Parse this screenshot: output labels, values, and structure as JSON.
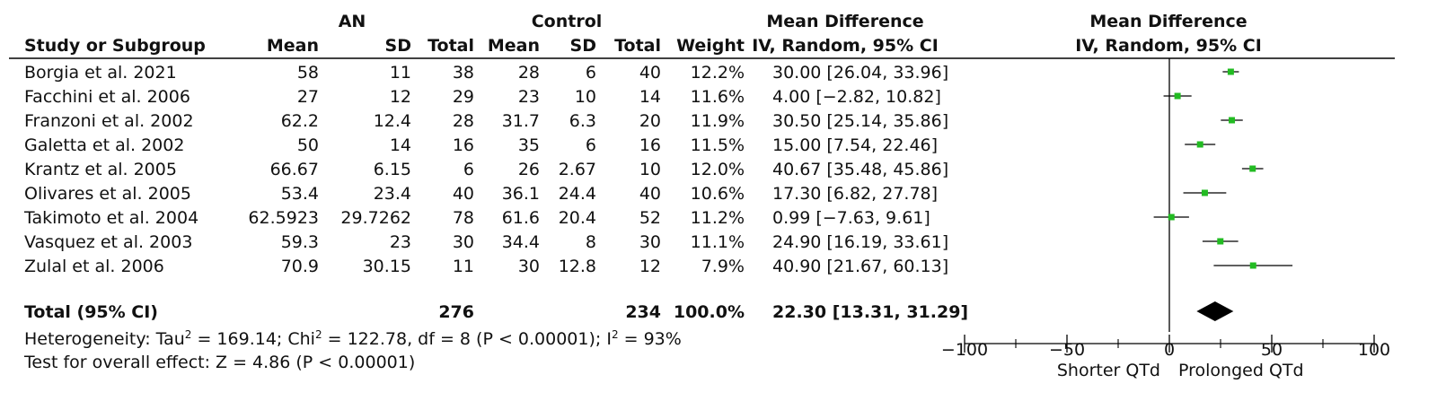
{
  "chart_data": {
    "type": "forest",
    "group_headers": {
      "an": "AN",
      "control": "Control",
      "md_table": "Mean Difference",
      "md_plot": "Mean Difference"
    },
    "columns": [
      "Study or Subgroup",
      "Mean",
      "SD",
      "Total",
      "Mean",
      "SD",
      "Total",
      "Weight",
      "IV, Random, 95% CI"
    ],
    "plot_header": "IV, Random, 95% CI",
    "studies": [
      {
        "study": "Borgia et al. 2021",
        "an_mean": "58",
        "an_sd": "11",
        "an_total": "38",
        "c_mean": "28",
        "c_sd": "6",
        "c_total": "40",
        "weight": "12.2%",
        "ci_text": "30.00 [26.04, 33.96]",
        "md": 30.0,
        "lo": 26.04,
        "hi": 33.96
      },
      {
        "study": "Facchini et al. 2006",
        "an_mean": "27",
        "an_sd": "12",
        "an_total": "29",
        "c_mean": "23",
        "c_sd": "10",
        "c_total": "14",
        "weight": "11.6%",
        "ci_text": "4.00 [−2.82, 10.82]",
        "md": 4.0,
        "lo": -2.82,
        "hi": 10.82
      },
      {
        "study": "Franzoni et al. 2002",
        "an_mean": "62.2",
        "an_sd": "12.4",
        "an_total": "28",
        "c_mean": "31.7",
        "c_sd": "6.3",
        "c_total": "20",
        "weight": "11.9%",
        "ci_text": "30.50 [25.14, 35.86]",
        "md": 30.5,
        "lo": 25.14,
        "hi": 35.86
      },
      {
        "study": "Galetta et al. 2002",
        "an_mean": "50",
        "an_sd": "14",
        "an_total": "16",
        "c_mean": "35",
        "c_sd": "6",
        "c_total": "16",
        "weight": "11.5%",
        "ci_text": "15.00 [7.54, 22.46]",
        "md": 15.0,
        "lo": 7.54,
        "hi": 22.46
      },
      {
        "study": "Krantz et al. 2005",
        "an_mean": "66.67",
        "an_sd": "6.15",
        "an_total": "6",
        "c_mean": "26",
        "c_sd": "2.67",
        "c_total": "10",
        "weight": "12.0%",
        "ci_text": "40.67 [35.48, 45.86]",
        "md": 40.67,
        "lo": 35.48,
        "hi": 45.86
      },
      {
        "study": "Olivares et al. 2005",
        "an_mean": "53.4",
        "an_sd": "23.4",
        "an_total": "40",
        "c_mean": "36.1",
        "c_sd": "24.4",
        "c_total": "40",
        "weight": "10.6%",
        "ci_text": "17.30 [6.82, 27.78]",
        "md": 17.3,
        "lo": 6.82,
        "hi": 27.78
      },
      {
        "study": "Takimoto et al. 2004",
        "an_mean": "62.5923",
        "an_sd": "29.7262",
        "an_total": "78",
        "c_mean": "61.6",
        "c_sd": "20.4",
        "c_total": "52",
        "weight": "11.2%",
        "ci_text": "0.99 [−7.63, 9.61]",
        "md": 0.99,
        "lo": -7.63,
        "hi": 9.61
      },
      {
        "study": "Vasquez et al. 2003",
        "an_mean": "59.3",
        "an_sd": "23",
        "an_total": "30",
        "c_mean": "34.4",
        "c_sd": "8",
        "c_total": "30",
        "weight": "11.1%",
        "ci_text": "24.90 [16.19, 33.61]",
        "md": 24.9,
        "lo": 16.19,
        "hi": 33.61
      },
      {
        "study": "Zulal et al. 2006",
        "an_mean": "70.9",
        "an_sd": "30.15",
        "an_total": "11",
        "c_mean": "30",
        "c_sd": "12.8",
        "c_total": "12",
        "weight": "7.9%",
        "ci_text": "40.90 [21.67, 60.13]",
        "md": 40.9,
        "lo": 21.67,
        "hi": 60.13
      }
    ],
    "total": {
      "label": "Total (95% CI)",
      "an_total": "276",
      "c_total": "234",
      "weight": "100.0%",
      "ci_text": "22.30 [13.31, 31.29]",
      "md": 22.3,
      "lo": 13.31,
      "hi": 31.29
    },
    "heterogeneity": {
      "tau_label": "Heterogeneity: Tau",
      "tau_value": " = 169.14; Chi",
      "chi_value": " = 122.78, df = 8 (P < 0.00001); I",
      "i2_value": " = 93%",
      "sup": "2"
    },
    "overall_test": "Test for overall effect: Z = 4.86 (P < 0.00001)",
    "x_axis": {
      "min": -100,
      "max": 100,
      "ticks": [
        -100,
        -50,
        0,
        50,
        100
      ],
      "tick_labels": [
        "−100",
        "−50",
        "0",
        "50",
        "100"
      ]
    },
    "favours": {
      "left": "Shorter QTd",
      "right": "Prolonged QTd"
    },
    "colors": {
      "marker": "#22bb22",
      "diamond": "#000000",
      "line": "#000000"
    }
  }
}
